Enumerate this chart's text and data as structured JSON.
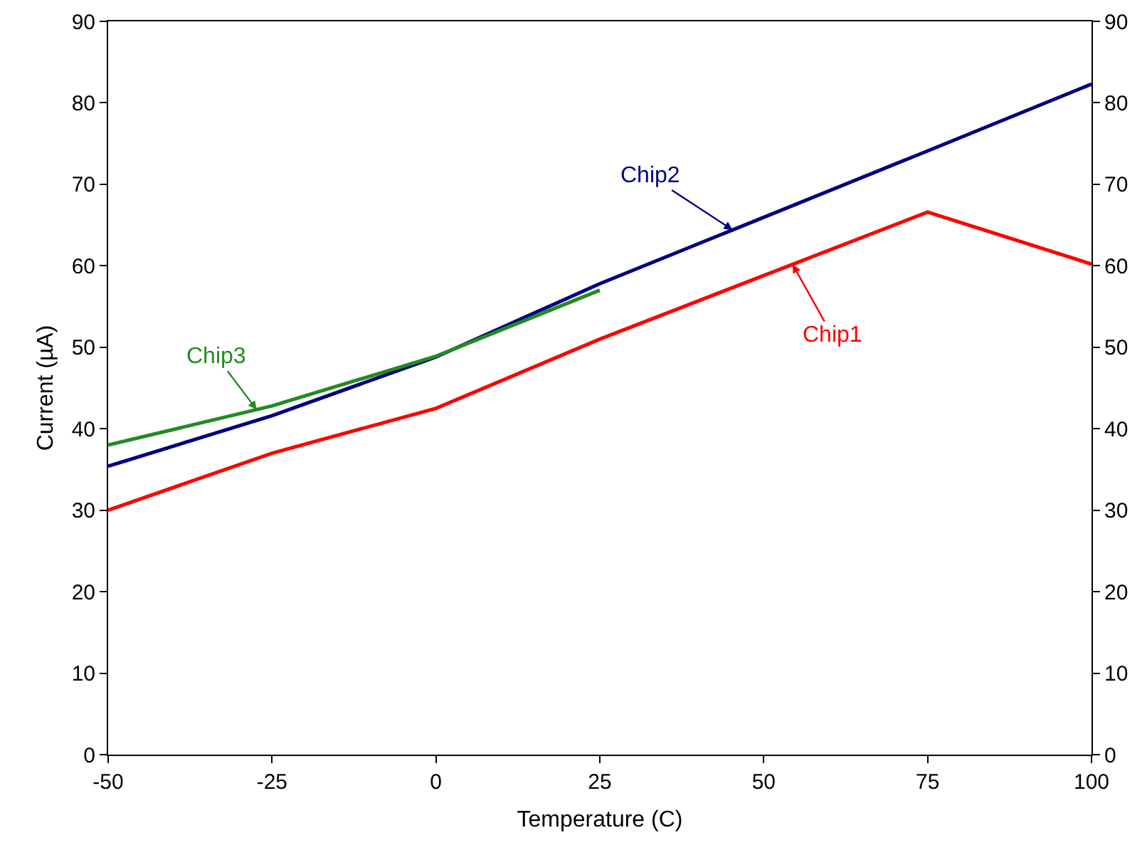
{
  "chart_data": {
    "type": "line",
    "xlabel": "Temperature (C)",
    "ylabel": "Current (µA)",
    "x": [
      -50,
      -25,
      0,
      25,
      75,
      100
    ],
    "series": [
      {
        "name": "Chip1",
        "color": "#ff0000",
        "values": [
          30,
          37,
          42.5,
          51,
          66.6,
          60.2
        ]
      },
      {
        "name": "Chip2",
        "color": "#000080",
        "values": [
          35.4,
          41.6,
          48.8,
          57.8,
          74.1,
          82.3
        ]
      },
      {
        "name": "Chip3",
        "color": "#228b22",
        "x": [
          -50,
          -25,
          0,
          25
        ],
        "values": [
          38,
          42.8,
          48.9,
          57
        ]
      }
    ],
    "xlim": [
      -50,
      100
    ],
    "xticks": [
      -50,
      -25,
      0,
      25,
      50,
      75,
      100
    ],
    "ylim": [
      0,
      90
    ],
    "yticks": [
      0,
      10,
      20,
      30,
      40,
      50,
      60,
      70,
      80,
      90
    ],
    "y2lim": [
      0,
      90
    ],
    "y2ticks": [
      0,
      10,
      20,
      30,
      40,
      50,
      60,
      70,
      80,
      90
    ],
    "grid": false,
    "legend": false,
    "marker": "none",
    "line_style": "solid"
  }
}
